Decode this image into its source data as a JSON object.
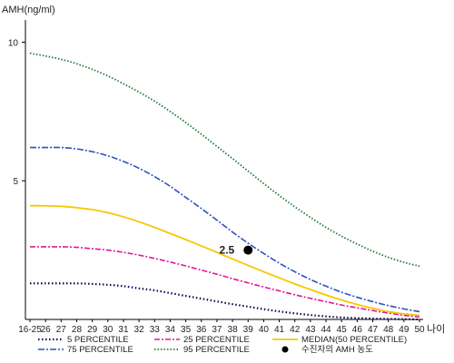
{
  "chart_data": {
    "type": "line",
    "title": "",
    "ylabel": "AMH(ng/ml)",
    "xlabel": "나이",
    "categories": [
      "16-25",
      "26",
      "27",
      "28",
      "29",
      "30",
      "31",
      "32",
      "33",
      "34",
      "35",
      "36",
      "37",
      "38",
      "39",
      "40",
      "41",
      "42",
      "43",
      "44",
      "45",
      "46",
      "47",
      "48",
      "49",
      "50"
    ],
    "y_ticks": [
      10,
      5
    ],
    "ylim": [
      0,
      10.8
    ],
    "grid": false,
    "legend_position": "bottom",
    "series": [
      {
        "name": "5 PERCENTILE",
        "color": "#0a0a55",
        "dash": "1.5 2.5",
        "width": 2.2,
        "values": [
          1.3,
          1.3,
          1.3,
          1.3,
          1.28,
          1.25,
          1.2,
          1.12,
          1.05,
          0.95,
          0.85,
          0.75,
          0.65,
          0.55,
          0.46,
          0.37,
          0.29,
          0.22,
          0.16,
          0.11,
          0.07,
          0.05,
          0.03,
          0.02,
          0.01,
          0.0
        ]
      },
      {
        "name": "25 PERCENTILE",
        "color": "#e0169a",
        "dash": "6 2 2 2",
        "width": 1.6,
        "values": [
          2.62,
          2.62,
          2.62,
          2.6,
          2.55,
          2.5,
          2.42,
          2.32,
          2.2,
          2.07,
          1.93,
          1.78,
          1.63,
          1.47,
          1.32,
          1.17,
          1.03,
          0.89,
          0.76,
          0.64,
          0.52,
          0.42,
          0.32,
          0.23,
          0.15,
          0.09
        ]
      },
      {
        "name": "MEDIAN(50 PERCENTILE)",
        "color": "#f5c800",
        "dash": "",
        "width": 1.8,
        "values": [
          4.1,
          4.1,
          4.08,
          4.03,
          3.96,
          3.85,
          3.7,
          3.52,
          3.32,
          3.1,
          2.88,
          2.65,
          2.42,
          2.18,
          1.95,
          1.72,
          1.5,
          1.28,
          1.08,
          0.88,
          0.7,
          0.54,
          0.4,
          0.28,
          0.2,
          0.15
        ]
      },
      {
        "name": "75 PERCENTILE",
        "color": "#2f4fc0",
        "dash": "7 2 2 2",
        "width": 1.6,
        "values": [
          6.2,
          6.2,
          6.2,
          6.15,
          6.05,
          5.9,
          5.7,
          5.45,
          5.15,
          4.8,
          4.4,
          4.0,
          3.58,
          3.15,
          2.75,
          2.38,
          2.03,
          1.72,
          1.44,
          1.2,
          0.98,
          0.8,
          0.64,
          0.5,
          0.38,
          0.28
        ]
      },
      {
        "name": "95 PERCENTILE",
        "color": "#1f7a3a",
        "dash": "1.5 2",
        "width": 1.8,
        "values": [
          9.6,
          9.5,
          9.38,
          9.22,
          9.02,
          8.78,
          8.5,
          8.2,
          7.87,
          7.5,
          7.1,
          6.68,
          6.24,
          5.8,
          5.35,
          4.9,
          4.47,
          4.06,
          3.68,
          3.32,
          3.0,
          2.72,
          2.46,
          2.24,
          2.06,
          1.92
        ]
      }
    ],
    "highlight_point": {
      "label": "2.5",
      "x": "39",
      "y": 2.5,
      "name": "수진자의 AMH 농도",
      "color": "#000000"
    },
    "legend_order": [
      "5 PERCENTILE",
      "25 PERCENTILE",
      "MEDIAN(50 PERCENTILE)",
      "75 PERCENTILE",
      "95 PERCENTILE",
      "수진자의 AMH 농도"
    ]
  }
}
